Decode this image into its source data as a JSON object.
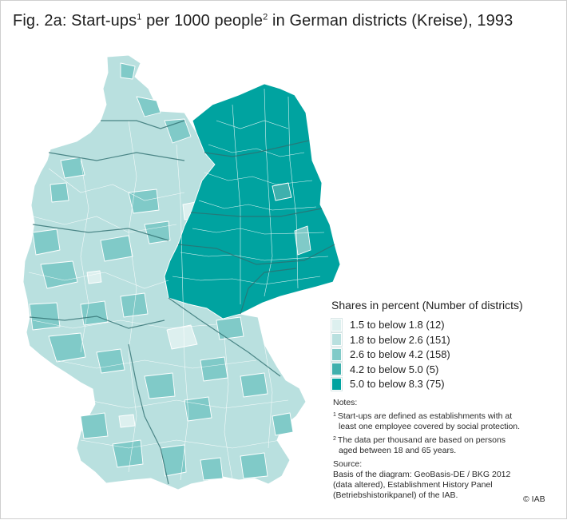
{
  "title": {
    "prefix": "Fig. 2a: Start-ups",
    "sup1": "1",
    "middle": " per 1000 people",
    "sup2": "2",
    "suffix": " in German districts (Kreise), 1993"
  },
  "legend": {
    "title": "Shares in percent (Number of districts)",
    "items": [
      {
        "label": "1.5 to below 1.8 (12)",
        "color": "#ddf0ef"
      },
      {
        "label": "1.8 to below 2.6 (151)",
        "color": "#b9e0df"
      },
      {
        "label": "2.6 to below 4.2 (158)",
        "color": "#80cac8"
      },
      {
        "label": "4.2 to below 5.0 (5)",
        "color": "#3fb0ad"
      },
      {
        "label": "5.0 to below 8.3 (75)",
        "color": "#00a3a0"
      }
    ]
  },
  "notes": {
    "heading": "Notes:",
    "note1_sup": "1",
    "note1_line1": "Start-ups are defined as establishments with at",
    "note1_line2": "least one employee covered by social protection.",
    "note2_sup": "2",
    "note2_line1": "The data per thousand are based on persons",
    "note2_line2": "aged between 18 and 65 years.",
    "source_heading": "Source:",
    "source_line1": "Basis of the diagram: GeoBasis-DE / BKG 2012",
    "source_line2": "(data altered), Establishment History Panel",
    "source_line3": "(Betriebshistorikpanel) of the IAB."
  },
  "copyright": "© IAB",
  "colors": {
    "border": "#ffffff",
    "state_border": "#2f6f70",
    "east_fill": "#00a3a0",
    "west_fill": "#b9e0df",
    "mid_fill": "#80cac8",
    "light_fill": "#ddf0ef"
  }
}
